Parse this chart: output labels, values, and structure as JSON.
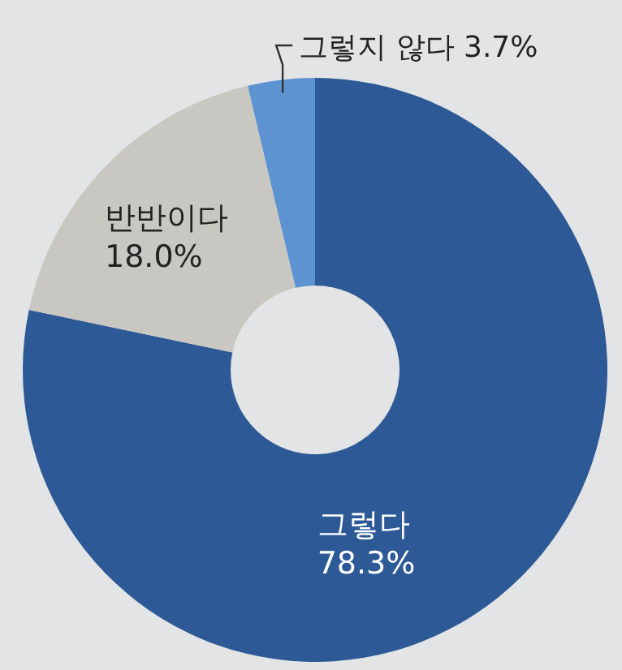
{
  "chart_data": {
    "type": "donut",
    "categories": [
      "그렇다",
      "반반이다",
      "그렇지 않다"
    ],
    "values": [
      78.3,
      18.0,
      3.7
    ],
    "colors": [
      "#2d5a96",
      "#c9c7c1",
      "#5d93d1"
    ],
    "value_labels": [
      "78.3%",
      "18.0%",
      "3.7%"
    ]
  }
}
